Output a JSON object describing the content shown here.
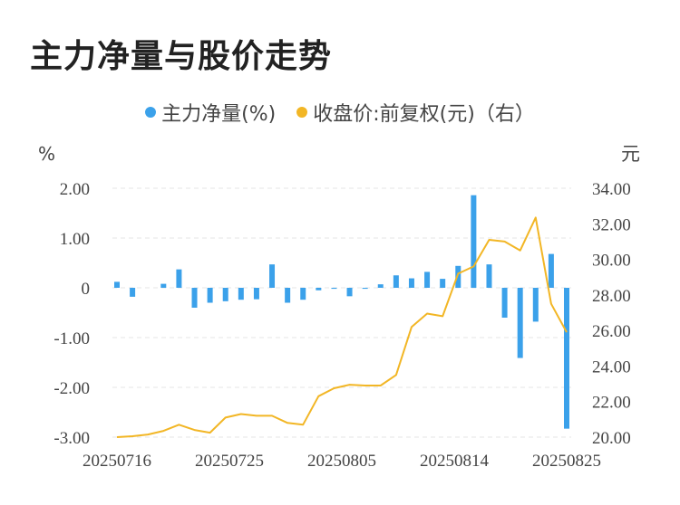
{
  "title": "主力净量与股价走势",
  "legend": {
    "left_series": "主力净量(%)",
    "right_series": "收盘价:前复权(元)（右）"
  },
  "colors": {
    "bar": "#3ba1ea",
    "line": "#f2b625",
    "grid": "#e6e6e6",
    "axis_text": "#444444"
  },
  "chart_data": {
    "type": "bar+line",
    "y_left": {
      "unit": "%",
      "min": -3,
      "max": 2,
      "ticks": [
        "2.00",
        "1.00",
        "0",
        "-1.00",
        "-2.00",
        "-3.00"
      ]
    },
    "y_right": {
      "unit": "元",
      "min": 20,
      "max": 34,
      "ticks": [
        "34.00",
        "32.00",
        "30.00",
        "28.00",
        "26.00",
        "24.00",
        "22.00",
        "20.00"
      ]
    },
    "x_tick_labels": [
      "20250716",
      "20250725",
      "20250805",
      "20250814",
      "20250825"
    ],
    "x_tick_indices": [
      0,
      9,
      18,
      27,
      36
    ],
    "series": [
      {
        "name": "主力净量(%)",
        "axis": "left",
        "type": "bar",
        "values": [
          0.12,
          -0.18,
          0.0,
          0.08,
          0.37,
          -0.4,
          -0.3,
          -0.27,
          -0.24,
          -0.23,
          0.47,
          -0.3,
          -0.24,
          -0.05,
          -0.02,
          -0.17,
          -0.02,
          0.07,
          0.25,
          0.19,
          0.32,
          0.18,
          0.44,
          1.86,
          0.47,
          -0.6,
          -1.41,
          -0.68,
          0.68,
          -2.83
        ]
      },
      {
        "name": "收盘价:前复权(元)（右）",
        "axis": "right",
        "type": "line",
        "values": [
          20.0,
          20.05,
          20.15,
          20.35,
          20.7,
          20.4,
          20.25,
          21.1,
          21.3,
          21.2,
          21.2,
          20.8,
          20.7,
          22.3,
          22.75,
          22.95,
          22.9,
          22.9,
          23.5,
          26.2,
          26.95,
          26.8,
          29.2,
          29.6,
          31.1,
          31.0,
          30.5,
          32.35,
          27.5,
          25.9
        ]
      }
    ]
  }
}
